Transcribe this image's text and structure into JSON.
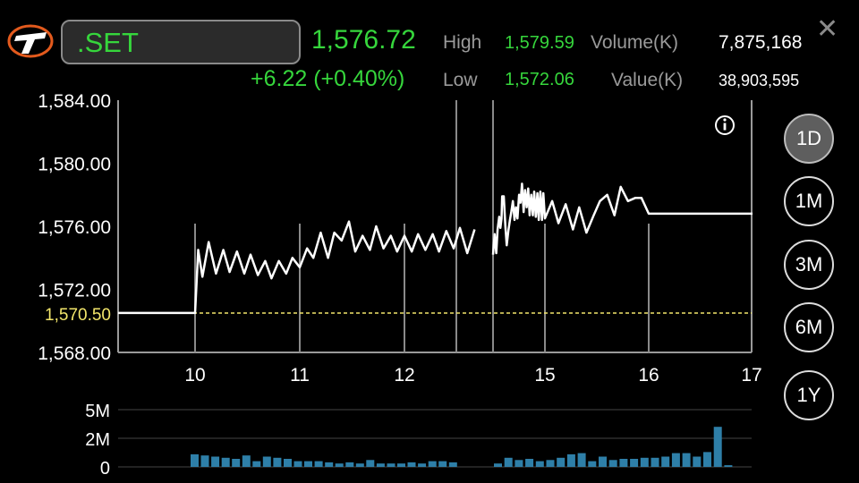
{
  "header": {
    "symbol": ".SET",
    "last": "1,576.72",
    "change": "+6.22 (+0.40%)",
    "high_label": "High",
    "high_value": "1,579.59",
    "low_label": "Low",
    "low_value": "1,572.06",
    "volume_label": "Volume(K)",
    "volume_value": "7,875,168",
    "value_label": "Value(K)",
    "value_value": "38,903,595",
    "close_icon": "close-icon"
  },
  "periods": [
    {
      "label": "1D",
      "active": true
    },
    {
      "label": "1M",
      "active": false
    },
    {
      "label": "3M",
      "active": false
    },
    {
      "label": "6M",
      "active": false
    },
    {
      "label": "1Y",
      "active": false
    }
  ],
  "colors": {
    "up": "#36d63c",
    "reference": "#f3e66b",
    "line": "#ffffff",
    "volume_bar": "#2e7fa8"
  },
  "chart_data": [
    {
      "type": "line",
      "title": "",
      "x_ticks": [
        "10",
        "11",
        "12",
        "15",
        "16",
        "17"
      ],
      "y_ticks": [
        "1,584.00",
        "1,580.00",
        "1,576.00",
        "1,572.00",
        "1,568.00"
      ],
      "ylim": [
        1568,
        1584
      ],
      "reference_label": "1,570.50",
      "reference_value": 1570.5,
      "series": [
        {
          "segment": "morning",
          "x": [
            9.4,
            9.5,
            9.6,
            9.7,
            9.8,
            9.9,
            10.0,
            10.03,
            10.07,
            10.13,
            10.2,
            10.27,
            10.33,
            10.4,
            10.47,
            10.53,
            10.6,
            10.67,
            10.73,
            10.8,
            10.87,
            10.93,
            11.0,
            11.07,
            11.13,
            11.2,
            11.27,
            11.33,
            11.4,
            11.47,
            11.53,
            11.6,
            11.67,
            11.73,
            11.8,
            11.87,
            11.93,
            12.0,
            12.07,
            12.13,
            12.2,
            12.27,
            12.33,
            12.4,
            12.47,
            12.53,
            12.6,
            12.67
          ],
          "values": [
            1570.5,
            1570.5,
            1570.5,
            1570.5,
            1570.5,
            1570.5,
            1570.5,
            1574.5,
            1572.8,
            1575.0,
            1573.0,
            1574.5,
            1573.1,
            1574.4,
            1573.0,
            1574.2,
            1572.9,
            1573.8,
            1572.7,
            1573.8,
            1573.0,
            1574.0,
            1573.4,
            1574.6,
            1574.0,
            1575.6,
            1574.0,
            1575.6,
            1575.1,
            1576.3,
            1574.4,
            1575.4,
            1574.5,
            1576.0,
            1574.6,
            1575.4,
            1574.4,
            1575.4,
            1574.4,
            1575.5,
            1574.5,
            1575.5,
            1574.4,
            1575.7,
            1574.6,
            1575.9,
            1574.3,
            1575.8
          ]
        },
        {
          "segment": "afternoon",
          "x": [
            12.73,
            12.8,
            12.87,
            12.93,
            13.0,
            13.05,
            13.1,
            13.13,
            13.2,
            13.27,
            13.33,
            13.4,
            13.47,
            13.53,
            13.6,
            13.67,
            13.73,
            13.8,
            13.87,
            13.93,
            14.0,
            14.07,
            14.13,
            14.2,
            14.27,
            14.33,
            14.4,
            14.47,
            14.53,
            14.6,
            14.67,
            14.73,
            14.8,
            14.87,
            14.93,
            15.0,
            15.07,
            15.13,
            15.2,
            15.27,
            15.33,
            15.4,
            15.47,
            15.53,
            15.6,
            15.67,
            15.73,
            15.8,
            15.87,
            15.93,
            16.0,
            16.07,
            16.13,
            16.2,
            16.27,
            16.33,
            16.4,
            16.47,
            16.53,
            16.6,
            16.67,
            16.73,
            16.8,
            16.87,
            16.93,
            17.0
          ],
          "values": [
            1574.2,
            1575.5,
            1574.3,
            1575.8,
            1576.6,
            1575.9,
            1576.5,
            1577.9,
            1577.9,
            1576.0,
            1574.8,
            1575.7,
            1576.4,
            1576.9,
            1577.6,
            1576.4,
            1577.2,
            1576.5,
            1578.0,
            1577.5,
            1578.7,
            1576.9,
            1578.3,
            1577.2,
            1578.4,
            1576.7,
            1578.0,
            1576.7,
            1578.2,
            1576.6,
            1578.1,
            1576.4,
            1578.2,
            1576.4,
            1578.1,
            1576.5,
            1577.6,
            1576.2,
            1577.4,
            1575.8,
            1577.2,
            1575.6,
            1576.7,
            1577.6,
            1578.0,
            1576.7,
            1578.5,
            1577.6,
            1577.8,
            1577.8,
            1576.8,
            1576.8,
            1576.8,
            1576.8,
            1576.8,
            1576.8,
            1576.8,
            1576.8,
            1576.8,
            1576.8,
            1576.8,
            1576.8,
            1576.8,
            1576.8,
            1576.8,
            1576.8
          ]
        }
      ],
      "legend": "none",
      "grid": true
    },
    {
      "type": "bar",
      "title": "",
      "y_ticks": [
        "5M",
        "2M",
        "0"
      ],
      "ylim": [
        0,
        6
      ],
      "x": [
        10.0,
        10.1,
        10.2,
        10.3,
        10.4,
        10.5,
        10.6,
        10.7,
        10.8,
        10.9,
        11.0,
        11.1,
        11.2,
        11.3,
        11.4,
        11.5,
        11.6,
        11.7,
        11.8,
        11.9,
        12.0,
        12.1,
        12.2,
        12.3,
        12.4,
        12.5,
        13.0,
        13.1,
        13.2,
        13.3,
        13.4,
        13.5,
        13.6,
        13.7,
        13.8,
        13.9,
        14.0,
        14.1,
        14.2,
        14.3,
        14.4,
        14.5,
        14.6,
        14.7,
        14.8,
        14.9,
        15.0,
        15.1,
        15.2
      ],
      "values": [
        1.1,
        1.0,
        0.9,
        0.8,
        0.7,
        1.0,
        0.5,
        0.9,
        0.8,
        0.7,
        0.5,
        0.5,
        0.5,
        0.4,
        0.3,
        0.4,
        0.3,
        0.6,
        0.3,
        0.3,
        0.3,
        0.4,
        0.3,
        0.5,
        0.5,
        0.4,
        0.3,
        0.8,
        0.6,
        0.7,
        0.5,
        0.6,
        0.8,
        1.1,
        1.2,
        0.5,
        0.9,
        0.6,
        0.7,
        0.7,
        0.8,
        0.8,
        0.9,
        1.2,
        1.2,
        0.9,
        1.3,
        3.5,
        0.15
      ]
    }
  ]
}
